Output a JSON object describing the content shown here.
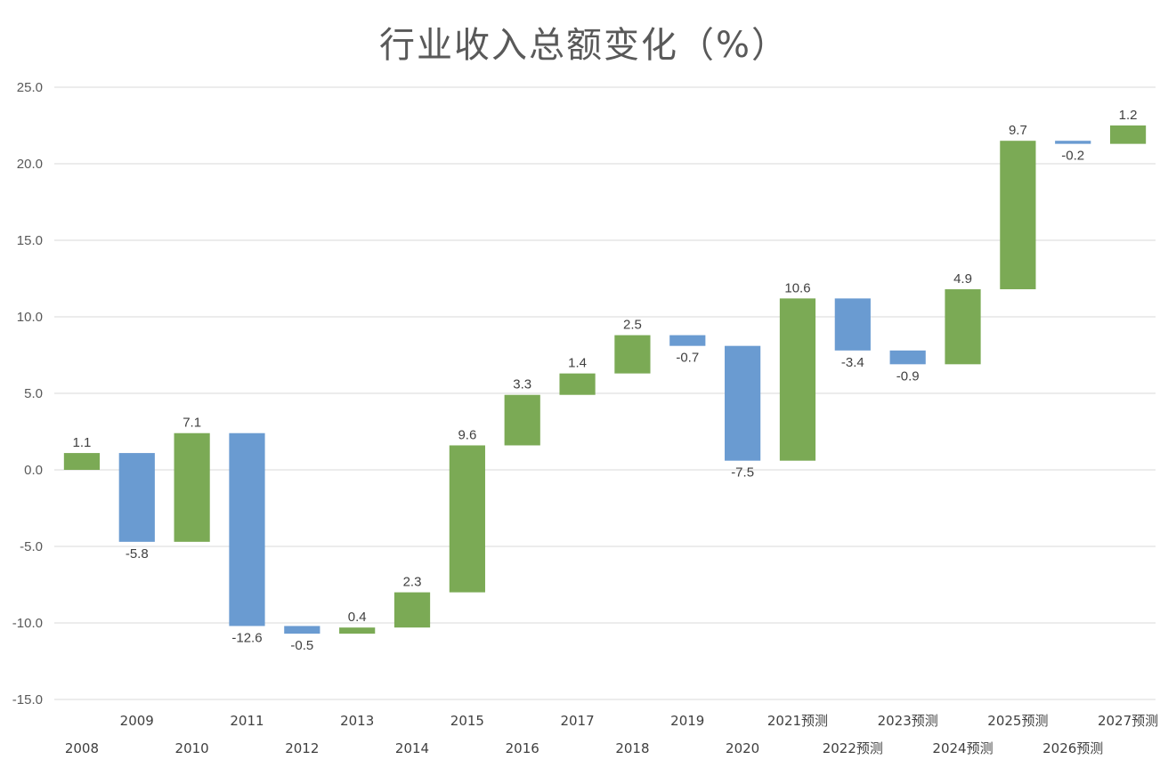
{
  "chart_data": {
    "type": "bar",
    "subtype": "waterfall",
    "title": "行业收入总额变化（%）",
    "xlabel": "",
    "ylabel": "",
    "ylim": [
      -15,
      25
    ],
    "yticks": [
      "25.0",
      "20.0",
      "15.0",
      "10.0",
      "5.0",
      "0.0",
      "-5.0",
      "-10.0",
      "-15.0"
    ],
    "grid": true,
    "legend": "none",
    "colors": {
      "increase": "#7BAA55",
      "decrease": "#6A9BD1",
      "grid": "#D9D9D9",
      "text": "#595959"
    },
    "categories": [
      "2008",
      "2009",
      "2010",
      "2011",
      "2012",
      "2013",
      "2014",
      "2015",
      "2016",
      "2017",
      "2018",
      "2019",
      "2020",
      "2021预测",
      "2022预测",
      "2023预测",
      "2024预测",
      "2025预测",
      "2026预测",
      "2027预测"
    ],
    "values": [
      1.1,
      -5.8,
      7.1,
      -12.6,
      -0.5,
      0.4,
      2.3,
      9.6,
      3.3,
      1.4,
      2.5,
      -0.7,
      -7.5,
      10.6,
      -3.4,
      -0.9,
      4.9,
      9.7,
      -0.2,
      1.2
    ],
    "data_labels": [
      "1.1",
      "-5.8",
      "7.1",
      "-12.6",
      "-0.5",
      "0.4",
      "2.3",
      "9.6",
      "3.3",
      "1.4",
      "2.5",
      "-0.7",
      "-7.5",
      "10.6",
      "-3.4",
      "-0.9",
      "4.9",
      "9.7",
      "-0.2",
      "1.2"
    ]
  }
}
